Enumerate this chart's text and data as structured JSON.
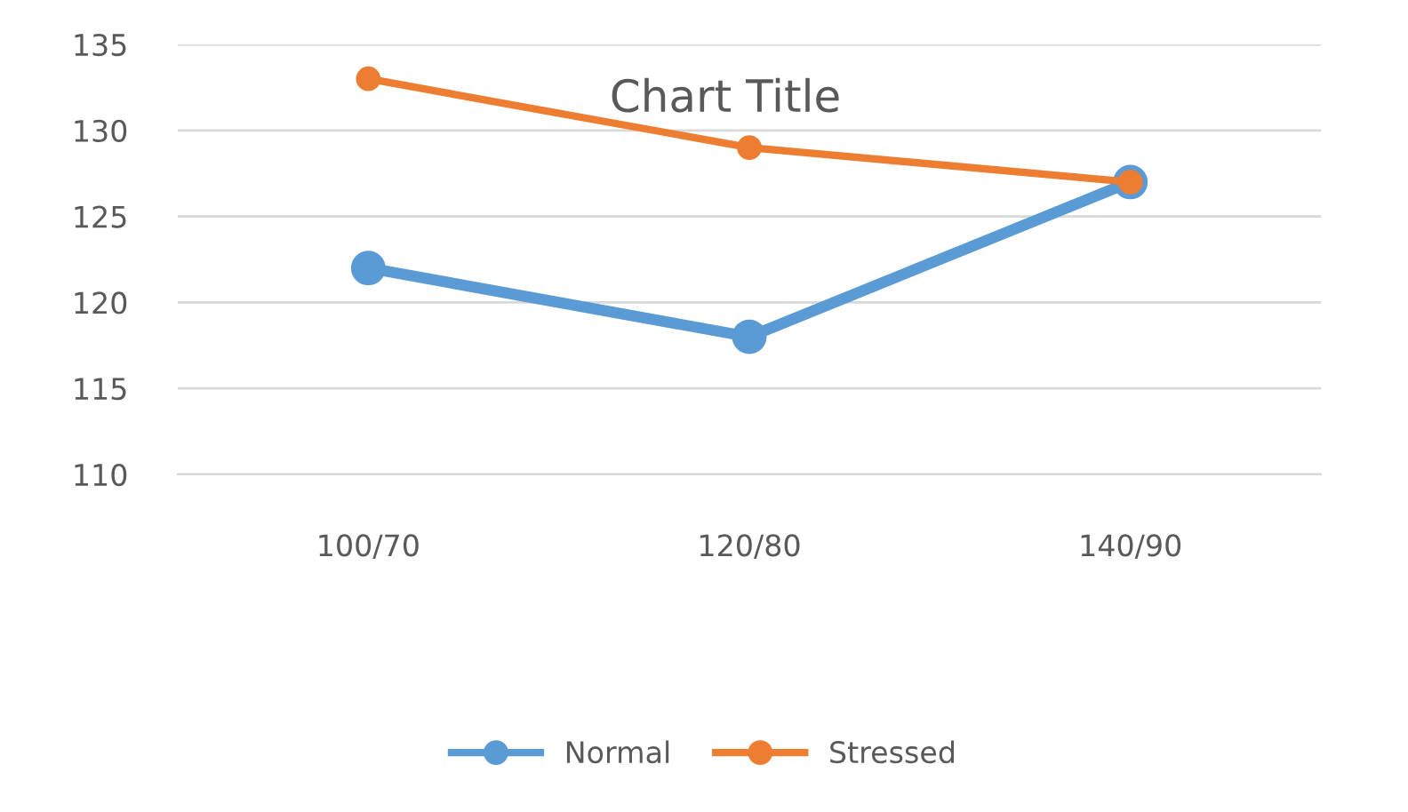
{
  "chart_data": {
    "type": "line",
    "title": "Chart Title",
    "categories": [
      "100/70",
      "120/80",
      "140/90"
    ],
    "series": [
      {
        "name": "Normal",
        "color": "#5b9bd5",
        "values": [
          122,
          118,
          127
        ]
      },
      {
        "name": "Stressed",
        "color": "#ed7d31",
        "values": [
          133,
          129,
          127
        ]
      }
    ],
    "ylim": [
      110,
      135
    ],
    "yticks": [
      110,
      115,
      120,
      125,
      130,
      135
    ],
    "grid": "y",
    "legend": "bottom",
    "marker": "circle",
    "line_style": "solid"
  }
}
